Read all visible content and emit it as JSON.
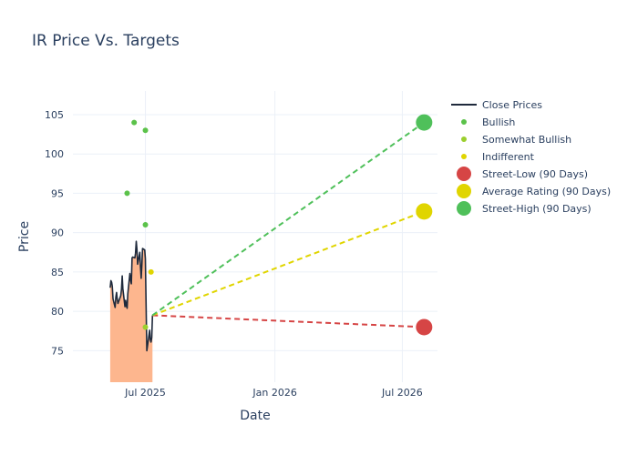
{
  "chart_data": {
    "type": "line",
    "title": "IR Price Vs. Targets",
    "xlabel": "Date",
    "ylabel": "Price",
    "xlim": [
      "2025-03-20",
      "2026-08-20"
    ],
    "ylim": [
      71,
      108
    ],
    "x_ticks": [
      {
        "date": "2025-07-01",
        "label": "Jul 2025"
      },
      {
        "date": "2026-01-01",
        "label": "Jan 2026"
      },
      {
        "date": "2026-07-01",
        "label": "Jul 2026"
      }
    ],
    "y_ticks": [
      75,
      80,
      85,
      90,
      95,
      100,
      105
    ],
    "grid": true,
    "legend_position": "right",
    "close_prices": {
      "name": "Close Prices",
      "color": "#1f2a3c",
      "fill_color": "#fdb68e",
      "points": [
        [
          "2025-05-12",
          83.0
        ],
        [
          "2025-05-13",
          83.9
        ],
        [
          "2025-05-14",
          83.7
        ],
        [
          "2025-05-15",
          83.2
        ],
        [
          "2025-05-16",
          81.6
        ],
        [
          "2025-05-19",
          80.5
        ],
        [
          "2025-05-20",
          81.8
        ],
        [
          "2025-05-21",
          82.4
        ],
        [
          "2025-05-22",
          81.6
        ],
        [
          "2025-05-23",
          81.0
        ],
        [
          "2025-05-27",
          82.0
        ],
        [
          "2025-05-28",
          82.8
        ],
        [
          "2025-05-29",
          84.5
        ],
        [
          "2025-05-30",
          82.9
        ],
        [
          "2025-06-02",
          80.6
        ],
        [
          "2025-06-03",
          81.4
        ],
        [
          "2025-06-04",
          80.7
        ],
        [
          "2025-06-05",
          80.4
        ],
        [
          "2025-06-06",
          82.2
        ],
        [
          "2025-06-09",
          84.8
        ],
        [
          "2025-06-10",
          84.0
        ],
        [
          "2025-06-11",
          83.5
        ],
        [
          "2025-06-12",
          86.8
        ],
        [
          "2025-06-13",
          86.9
        ],
        [
          "2025-06-16",
          86.8
        ],
        [
          "2025-06-17",
          87.4
        ],
        [
          "2025-06-18",
          88.9
        ],
        [
          "2025-06-19",
          87.8
        ],
        [
          "2025-06-20",
          86.0
        ],
        [
          "2025-06-23",
          87.5
        ],
        [
          "2025-06-24",
          85.7
        ],
        [
          "2025-06-25",
          84.2
        ],
        [
          "2025-06-26",
          86.0
        ],
        [
          "2025-06-27",
          88.0
        ],
        [
          "2025-06-30",
          87.8
        ],
        [
          "2025-07-01",
          86.7
        ],
        [
          "2025-07-02",
          80.8
        ],
        [
          "2025-07-03",
          75.0
        ],
        [
          "2025-07-07",
          77.6
        ],
        [
          "2025-07-08",
          76.4
        ],
        [
          "2025-07-09",
          76.1
        ],
        [
          "2025-07-10",
          76.7
        ],
        [
          "2025-07-11",
          79.5
        ]
      ]
    },
    "ratings": [
      {
        "name": "Bullish",
        "color": "#5bc24a",
        "points": [
          [
            "2025-06-15",
            104
          ],
          [
            "2025-07-01",
            103
          ],
          [
            "2025-06-05",
            95
          ],
          [
            "2025-07-01",
            91
          ]
        ]
      },
      {
        "name": "Somewhat Bullish",
        "color": "#9bcf2e",
        "points": [
          [
            "2025-07-01",
            78
          ]
        ]
      },
      {
        "name": "Indifferent",
        "color": "#e0d500",
        "points": [
          [
            "2025-07-09",
            85
          ]
        ]
      }
    ],
    "targets": [
      {
        "name": "Street-Low (90 Days)",
        "color": "#d64545",
        "value": 78.0
      },
      {
        "name": "Average Rating (90 Days)",
        "color": "#e0d500",
        "value": 92.7
      },
      {
        "name": "Street-High (90 Days)",
        "color": "#4fc05a",
        "value": 104.0
      }
    ],
    "target_start": {
      "date": "2025-07-11",
      "value": 79.5
    },
    "target_end_date": "2026-08-01"
  }
}
